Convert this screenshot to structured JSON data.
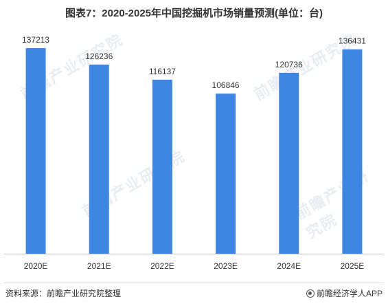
{
  "page": {
    "title": "图表7：2020-2025年中国挖掘机市场销量预测(单位：台)",
    "source": "资料来源：前瞻产业研究院整理",
    "brand": "前瞻经济学人APP",
    "watermark": "前瞻产业研究院"
  },
  "colors": {
    "bar": "#3f86e3",
    "axis": "#bfbfbf",
    "label": "#333333"
  },
  "chart_data": {
    "type": "bar",
    "title": "图表7：2020-2025年中国挖掘机市场销量预测(单位：台)",
    "categories": [
      "2020E",
      "2021E",
      "2022E",
      "2023E",
      "2024E",
      "2025E"
    ],
    "values": [
      137213,
      126236,
      116137,
      106846,
      120736,
      136431
    ],
    "xlabel": "",
    "ylabel": "",
    "ylim": [
      0,
      137213
    ],
    "grid": false,
    "legend": "none"
  }
}
